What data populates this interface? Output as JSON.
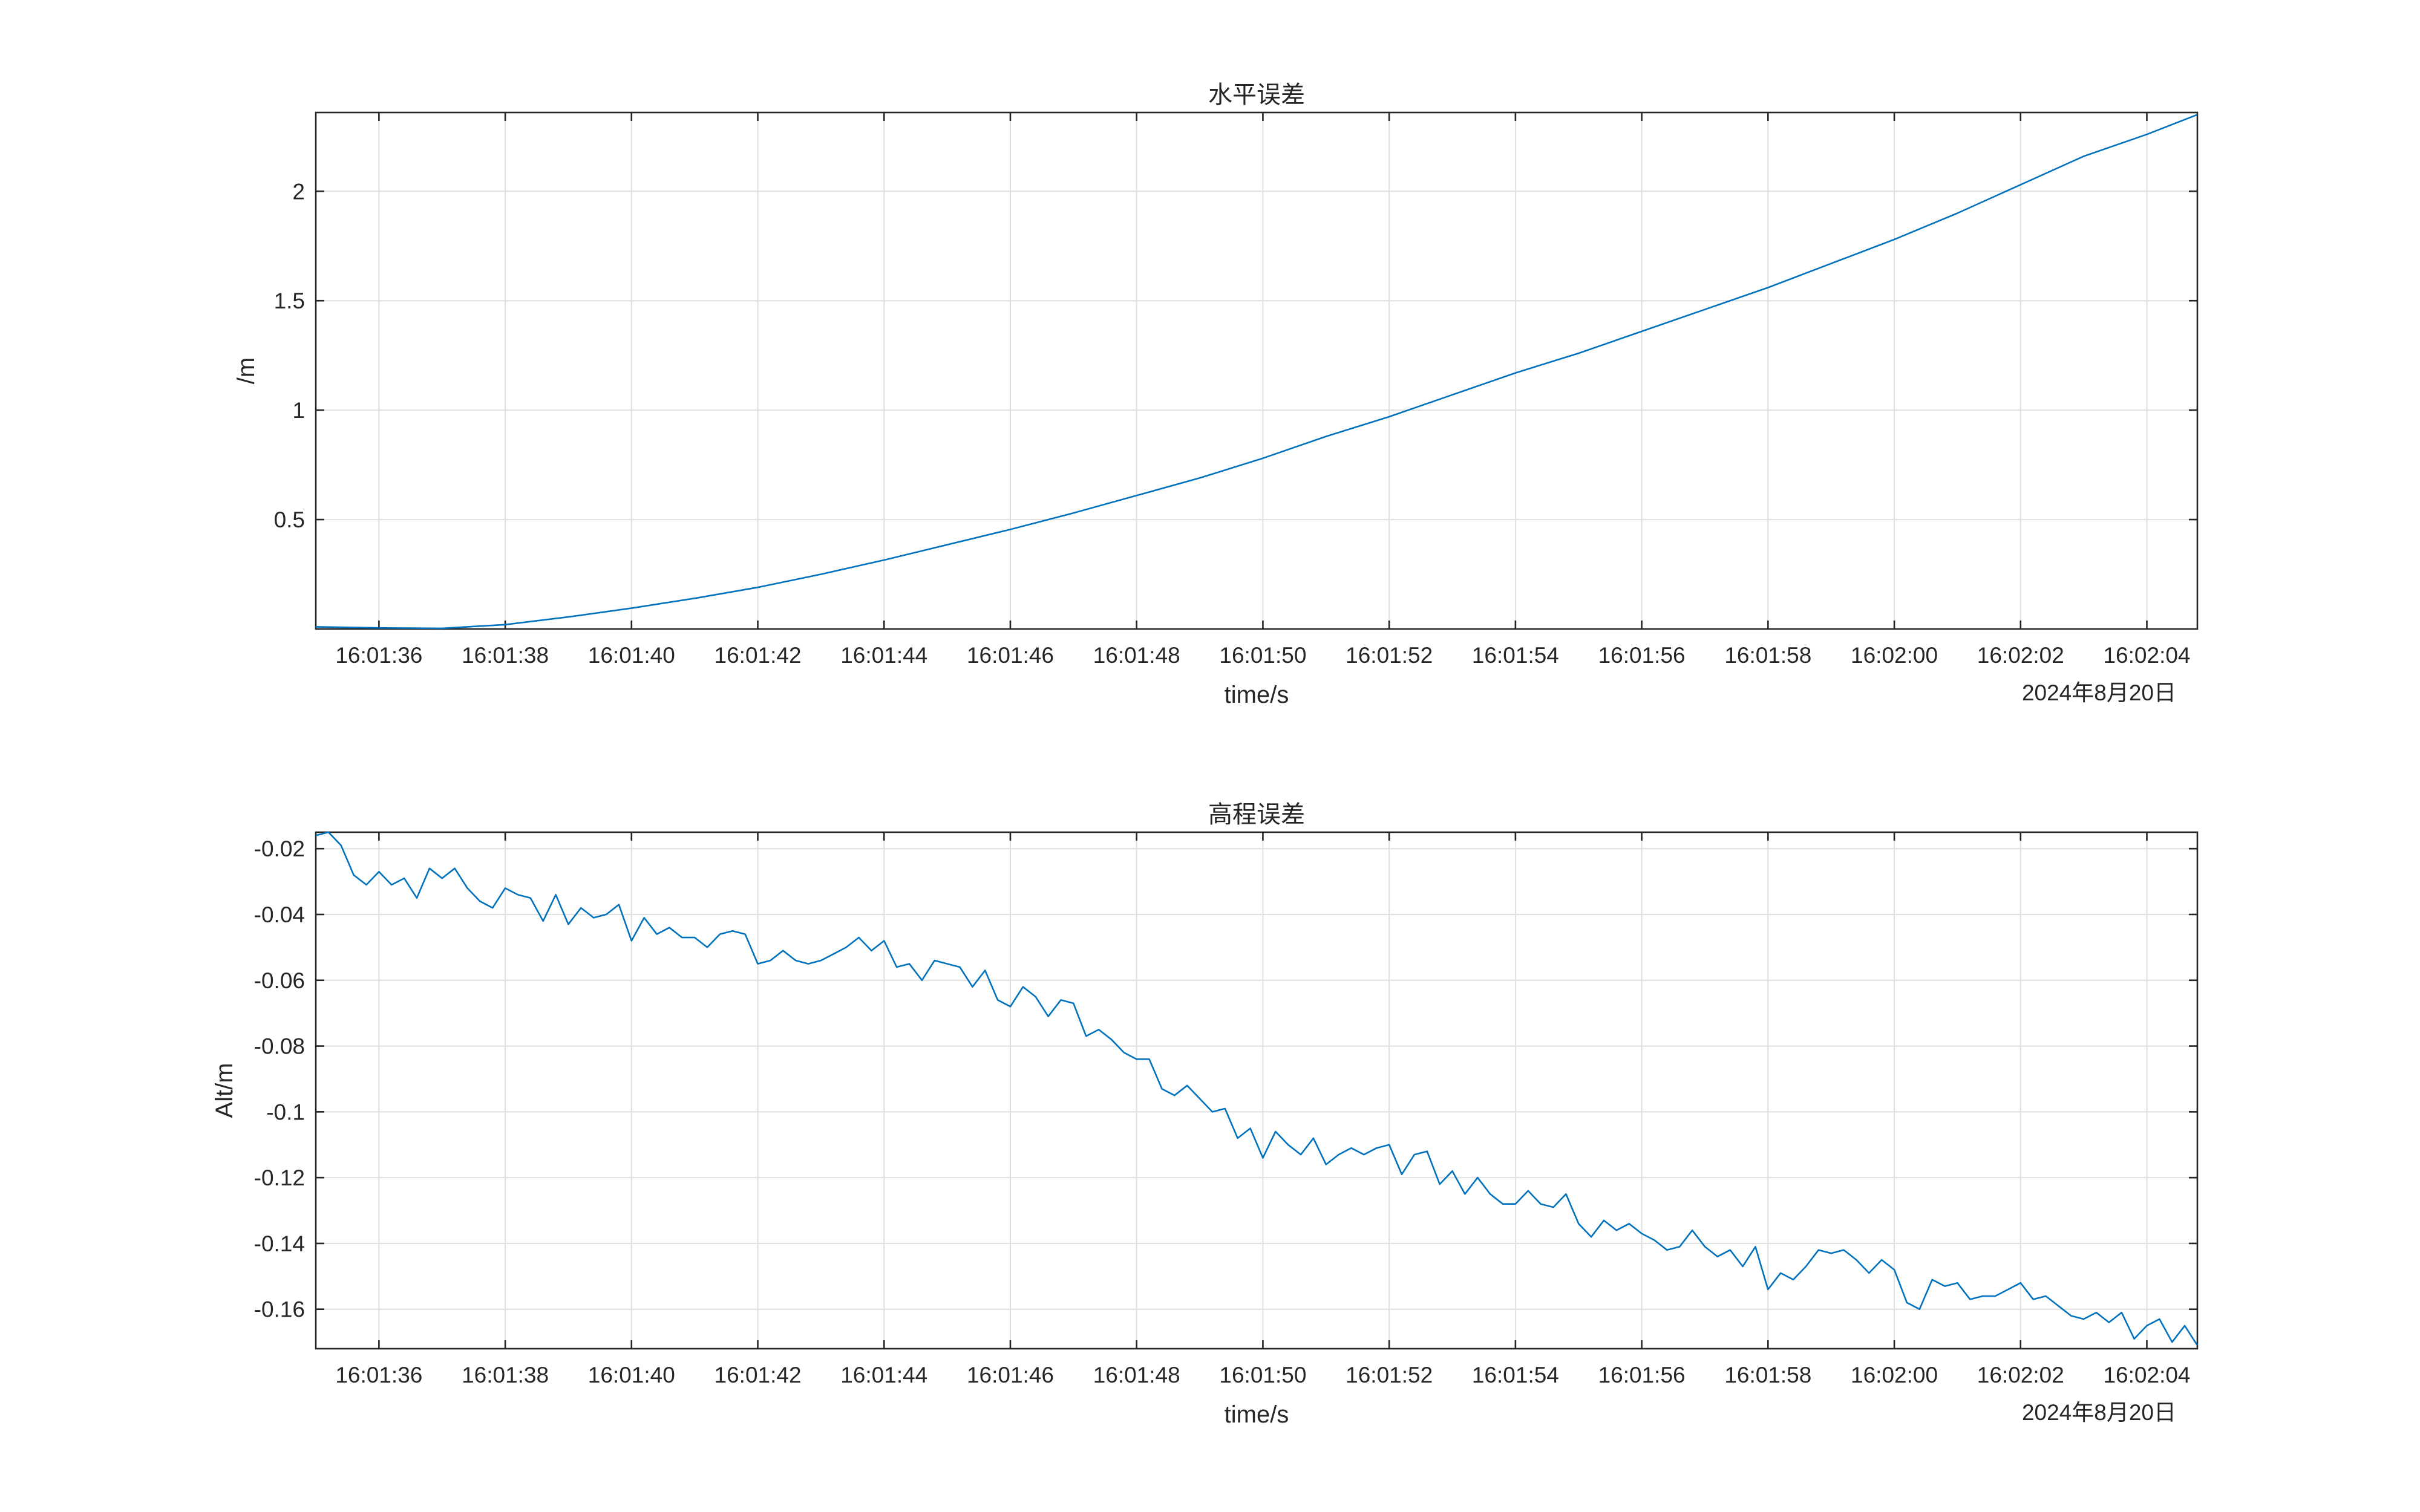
{
  "chart_data": [
    {
      "type": "line",
      "title": "水平误差",
      "xlabel": "time/s",
      "ylabel": "/m",
      "date_label": "2024年8月20日",
      "x_ticks": [
        "16:01:36",
        "16:01:38",
        "16:01:40",
        "16:01:42",
        "16:01:44",
        "16:01:46",
        "16:01:48",
        "16:01:50",
        "16:01:52",
        "16:01:54",
        "16:01:56",
        "16:01:58",
        "16:02:00",
        "16:02:02",
        "16:02:04"
      ],
      "xlim": [
        "16:01:35.00",
        "16:02:04.80"
      ],
      "ylim": [
        0,
        2.36
      ],
      "y_ticks": [
        0.5,
        1,
        1.5,
        2
      ],
      "y_tick_labels": [
        "0.5",
        "1",
        "1.5",
        "2"
      ],
      "grid": true,
      "color": "#0072bd",
      "x": [
        "16:01:35",
        "16:01:36",
        "16:01:37",
        "16:01:38",
        "16:01:39",
        "16:01:40",
        "16:01:41",
        "16:01:42",
        "16:01:43",
        "16:01:44",
        "16:01:45",
        "16:01:46",
        "16:01:47",
        "16:01:48",
        "16:01:49",
        "16:01:50",
        "16:01:51",
        "16:01:52",
        "16:01:53",
        "16:01:54",
        "16:01:55",
        "16:01:56",
        "16:01:57",
        "16:01:58",
        "16:01:59",
        "16:02:00",
        "16:02:01",
        "16:02:02",
        "16:02:03",
        "16:02:04",
        "16:02:04.8"
      ],
      "values": [
        0.01,
        0.005,
        0.003,
        0.02,
        0.055,
        0.095,
        0.14,
        0.19,
        0.25,
        0.315,
        0.385,
        0.455,
        0.53,
        0.61,
        0.69,
        0.78,
        0.88,
        0.97,
        1.07,
        1.17,
        1.26,
        1.36,
        1.46,
        1.56,
        1.67,
        1.78,
        1.9,
        2.03,
        2.16,
        2.26,
        2.35
      ]
    },
    {
      "type": "line",
      "title": "高程误差",
      "xlabel": "time/s",
      "ylabel": "Alt/m",
      "date_label": "2024年8月20日",
      "x_ticks": [
        "16:01:36",
        "16:01:38",
        "16:01:40",
        "16:01:42",
        "16:01:44",
        "16:01:46",
        "16:01:48",
        "16:01:50",
        "16:01:52",
        "16:01:54",
        "16:01:56",
        "16:01:58",
        "16:02:00",
        "16:02:02",
        "16:02:04"
      ],
      "xlim": [
        "16:01:35.00",
        "16:02:04.80"
      ],
      "ylim": [
        -0.172,
        -0.015
      ],
      "y_ticks": [
        -0.02,
        -0.04,
        -0.06,
        -0.08,
        -0.1,
        -0.12,
        -0.14,
        -0.16
      ],
      "y_tick_labels": [
        "-0.02",
        "-0.04",
        "-0.06",
        "-0.08",
        "-0.1",
        "-0.12",
        "-0.14",
        "-0.16"
      ],
      "grid": true,
      "color": "#0072bd",
      "x_step_s": 0.2,
      "values": [
        -0.016,
        -0.015,
        -0.019,
        -0.028,
        -0.031,
        -0.027,
        -0.031,
        -0.029,
        -0.035,
        -0.026,
        -0.029,
        -0.026,
        -0.032,
        -0.036,
        -0.038,
        -0.032,
        -0.034,
        -0.035,
        -0.042,
        -0.034,
        -0.043,
        -0.038,
        -0.041,
        -0.04,
        -0.037,
        -0.048,
        -0.041,
        -0.046,
        -0.044,
        -0.047,
        -0.047,
        -0.05,
        -0.046,
        -0.045,
        -0.046,
        -0.055,
        -0.054,
        -0.051,
        -0.054,
        -0.055,
        -0.054,
        -0.052,
        -0.05,
        -0.047,
        -0.051,
        -0.048,
        -0.056,
        -0.055,
        -0.06,
        -0.054,
        -0.055,
        -0.056,
        -0.062,
        -0.057,
        -0.066,
        -0.068,
        -0.062,
        -0.065,
        -0.071,
        -0.066,
        -0.067,
        -0.077,
        -0.075,
        -0.078,
        -0.082,
        -0.084,
        -0.084,
        -0.093,
        -0.095,
        -0.092,
        -0.096,
        -0.1,
        -0.099,
        -0.108,
        -0.105,
        -0.114,
        -0.106,
        -0.11,
        -0.113,
        -0.108,
        -0.116,
        -0.113,
        -0.111,
        -0.113,
        -0.111,
        -0.11,
        -0.119,
        -0.113,
        -0.112,
        -0.122,
        -0.118,
        -0.125,
        -0.12,
        -0.125,
        -0.128,
        -0.128,
        -0.124,
        -0.128,
        -0.129,
        -0.125,
        -0.134,
        -0.138,
        -0.133,
        -0.136,
        -0.134,
        -0.137,
        -0.139,
        -0.142,
        -0.141,
        -0.136,
        -0.141,
        -0.144,
        -0.142,
        -0.147,
        -0.141,
        -0.154,
        -0.149,
        -0.151,
        -0.147,
        -0.142,
        -0.143,
        -0.142,
        -0.145,
        -0.149,
        -0.145,
        -0.148,
        -0.158,
        -0.16,
        -0.151,
        -0.153,
        -0.152,
        -0.157,
        -0.156,
        -0.156,
        -0.154,
        -0.152,
        -0.157,
        -0.156,
        -0.159,
        -0.162,
        -0.163,
        -0.161,
        -0.164,
        -0.161,
        -0.169,
        -0.165,
        -0.163,
        -0.17,
        -0.165,
        -0.171
      ]
    }
  ]
}
